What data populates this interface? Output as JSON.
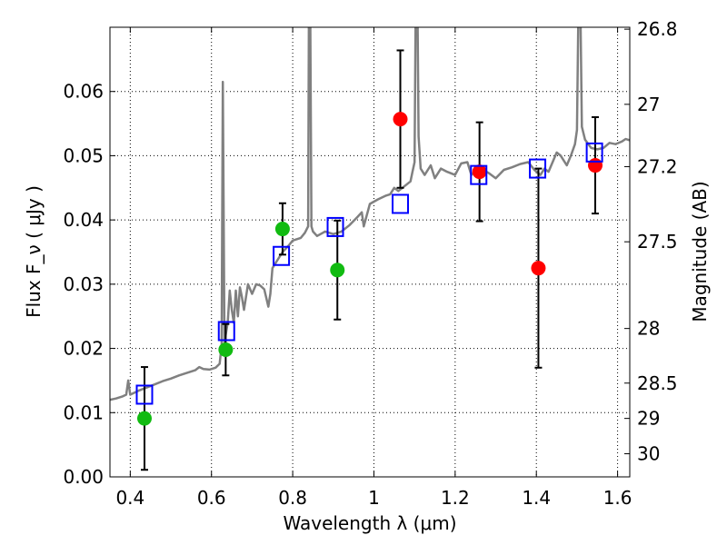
{
  "chart_data": {
    "type": "scatter",
    "xlabel": "Wavelength  λ (μm)",
    "ylabel": "Flux  F_ν  ( μJy )",
    "ylabel_right": "Magnitude (AB)",
    "xlim": [
      0.35,
      1.63
    ],
    "ylim": [
      0.0,
      0.07
    ],
    "grid": true,
    "x_ticks": [
      0.4,
      0.6,
      0.8,
      1.0,
      1.2,
      1.4,
      1.6
    ],
    "x_tick_labels": [
      "0.4",
      "0.6",
      "0.8",
      "1",
      "1.2",
      "1.4",
      "1.6"
    ],
    "y_ticks": [
      0.0,
      0.01,
      0.02,
      0.03,
      0.04,
      0.05,
      0.06
    ],
    "y_tick_labels": [
      "0.00",
      "0.01",
      "0.02",
      "0.03",
      "0.04",
      "0.05",
      "0.06"
    ],
    "right_ticks": [
      {
        "label": "26.8",
        "flux": 0.0697
      },
      {
        "label": "27",
        "flux": 0.058
      },
      {
        "label": "27.2",
        "flux": 0.0483
      },
      {
        "label": "27.5",
        "flux": 0.0366
      },
      {
        "label": "28",
        "flux": 0.0231
      },
      {
        "label": "28.5",
        "flux": 0.0146
      },
      {
        "label": "29",
        "flux": 0.0091
      },
      {
        "label": "30",
        "flux": 0.0036
      }
    ],
    "colors": {
      "spectrum": "#808080",
      "green": "#11bb11",
      "red": "#ff0000",
      "model_box": "#0000ff",
      "errorbar": "#000000"
    },
    "observed_green": [
      {
        "x": 0.435,
        "y": 0.0091,
        "err": 0.008
      },
      {
        "x": 0.635,
        "y": 0.0198,
        "err": 0.004
      },
      {
        "x": 0.775,
        "y": 0.0386,
        "err": 0.004
      },
      {
        "x": 0.91,
        "y": 0.0322,
        "err": 0.0077
      }
    ],
    "observed_red": [
      {
        "x": 1.065,
        "y": 0.0557,
        "err": 0.0107
      },
      {
        "x": 1.26,
        "y": 0.0475,
        "err": 0.0077
      },
      {
        "x": 1.405,
        "y": 0.0325,
        "err": 0.0155
      },
      {
        "x": 1.545,
        "y": 0.0485,
        "err": 0.0075
      }
    ],
    "model_boxes": [
      {
        "x": 0.435,
        "y": 0.0128
      },
      {
        "x": 0.637,
        "y": 0.0227
      },
      {
        "x": 0.772,
        "y": 0.0344
      },
      {
        "x": 0.905,
        "y": 0.0389
      },
      {
        "x": 1.065,
        "y": 0.0425
      },
      {
        "x": 1.258,
        "y": 0.047
      },
      {
        "x": 1.403,
        "y": 0.048
      },
      {
        "x": 1.543,
        "y": 0.0505
      }
    ],
    "spectrum": [
      [
        0.35,
        0.012
      ],
      [
        0.365,
        0.0122
      ],
      [
        0.38,
        0.0125
      ],
      [
        0.39,
        0.0128
      ],
      [
        0.395,
        0.015
      ],
      [
        0.4,
        0.0128
      ],
      [
        0.42,
        0.0134
      ],
      [
        0.44,
        0.0139
      ],
      [
        0.46,
        0.0144
      ],
      [
        0.48,
        0.0149
      ],
      [
        0.5,
        0.0153
      ],
      [
        0.52,
        0.0158
      ],
      [
        0.54,
        0.0162
      ],
      [
        0.56,
        0.0166
      ],
      [
        0.57,
        0.0171
      ],
      [
        0.58,
        0.0168
      ],
      [
        0.595,
        0.0167
      ],
      [
        0.61,
        0.017
      ],
      [
        0.62,
        0.0176
      ],
      [
        0.625,
        0.0205
      ],
      [
        0.628,
        0.0615
      ],
      [
        0.632,
        0.021
      ],
      [
        0.64,
        0.024
      ],
      [
        0.645,
        0.029
      ],
      [
        0.65,
        0.026
      ],
      [
        0.655,
        0.024
      ],
      [
        0.66,
        0.029
      ],
      [
        0.665,
        0.025
      ],
      [
        0.67,
        0.0295
      ],
      [
        0.675,
        0.028
      ],
      [
        0.68,
        0.026
      ],
      [
        0.69,
        0.03
      ],
      [
        0.7,
        0.0285
      ],
      [
        0.71,
        0.03
      ],
      [
        0.72,
        0.0298
      ],
      [
        0.73,
        0.0292
      ],
      [
        0.74,
        0.0265
      ],
      [
        0.745,
        0.0285
      ],
      [
        0.75,
        0.0325
      ],
      [
        0.76,
        0.0335
      ],
      [
        0.775,
        0.035
      ],
      [
        0.79,
        0.036
      ],
      [
        0.8,
        0.0368
      ],
      [
        0.82,
        0.0372
      ],
      [
        0.83,
        0.038
      ],
      [
        0.838,
        0.039
      ],
      [
        0.84,
        0.075
      ],
      [
        0.843,
        0.075
      ],
      [
        0.846,
        0.039
      ],
      [
        0.85,
        0.0382
      ],
      [
        0.86,
        0.0375
      ],
      [
        0.88,
        0.0382
      ],
      [
        0.9,
        0.0378
      ],
      [
        0.92,
        0.0382
      ],
      [
        0.94,
        0.0392
      ],
      [
        0.96,
        0.0405
      ],
      [
        0.97,
        0.0412
      ],
      [
        0.975,
        0.039
      ],
      [
        0.99,
        0.0425
      ],
      [
        1.01,
        0.0432
      ],
      [
        1.03,
        0.0438
      ],
      [
        1.04,
        0.044
      ],
      [
        1.05,
        0.045
      ],
      [
        1.06,
        0.0445
      ],
      [
        1.08,
        0.0455
      ],
      [
        1.09,
        0.046
      ],
      [
        1.095,
        0.0475
      ],
      [
        1.1,
        0.049
      ],
      [
        1.103,
        0.075
      ],
      [
        1.107,
        0.075
      ],
      [
        1.11,
        0.053
      ],
      [
        1.115,
        0.048
      ],
      [
        1.125,
        0.047
      ],
      [
        1.14,
        0.0485
      ],
      [
        1.15,
        0.0465
      ],
      [
        1.165,
        0.048
      ],
      [
        1.18,
        0.0475
      ],
      [
        1.2,
        0.047
      ],
      [
        1.215,
        0.0488
      ],
      [
        1.23,
        0.049
      ],
      [
        1.24,
        0.047
      ],
      [
        1.255,
        0.048
      ],
      [
        1.27,
        0.0478
      ],
      [
        1.285,
        0.0472
      ],
      [
        1.3,
        0.0465
      ],
      [
        1.32,
        0.0478
      ],
      [
        1.34,
        0.0482
      ],
      [
        1.36,
        0.0487
      ],
      [
        1.38,
        0.049
      ],
      [
        1.395,
        0.0478
      ],
      [
        1.41,
        0.047
      ],
      [
        1.42,
        0.048
      ],
      [
        1.43,
        0.0475
      ],
      [
        1.44,
        0.049
      ],
      [
        1.45,
        0.0505
      ],
      [
        1.46,
        0.05
      ],
      [
        1.475,
        0.0485
      ],
      [
        1.485,
        0.05
      ],
      [
        1.495,
        0.0518
      ],
      [
        1.5,
        0.054
      ],
      [
        1.504,
        0.075
      ],
      [
        1.508,
        0.075
      ],
      [
        1.512,
        0.0545
      ],
      [
        1.52,
        0.0525
      ],
      [
        1.535,
        0.0512
      ],
      [
        1.55,
        0.051
      ],
      [
        1.565,
        0.0512
      ],
      [
        1.58,
        0.052
      ],
      [
        1.595,
        0.0518
      ],
      [
        1.61,
        0.0522
      ],
      [
        1.62,
        0.0526
      ],
      [
        1.63,
        0.0524
      ]
    ]
  }
}
